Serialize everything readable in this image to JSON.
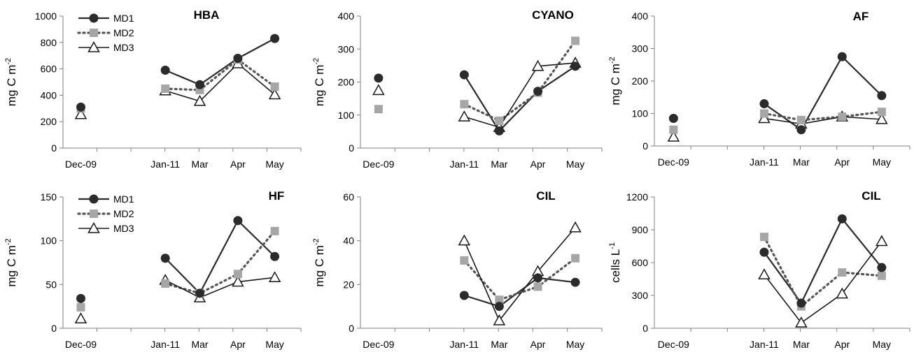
{
  "chart_data": [
    {
      "type": "line",
      "title": "HBA",
      "ylabel": "mg C m",
      "ylabel_sup": "-2",
      "ylim": [
        0,
        1000
      ],
      "yticks": [
        0,
        200,
        400,
        600,
        800,
        1000
      ],
      "categories": [
        "Dec-09",
        "Jan-11",
        "Mar",
        "Apr",
        "May"
      ],
      "legend": "top-left",
      "series": [
        {
          "name": "MD1",
          "values": [
            310,
            590,
            480,
            680,
            830
          ]
        },
        {
          "name": "MD2",
          "values": [
            300,
            450,
            440,
            670,
            465
          ]
        },
        {
          "name": "MD3",
          "values": [
            255,
            435,
            355,
            640,
            405
          ]
        }
      ]
    },
    {
      "type": "line",
      "title": "CYANO",
      "ylabel": "mg C m",
      "ylabel_sup": "-2",
      "ylim": [
        0,
        400
      ],
      "yticks": [
        0,
        100,
        200,
        300,
        400
      ],
      "categories": [
        "Dec-09",
        "Jan-11",
        "Mar",
        "Apr",
        "May"
      ],
      "series": [
        {
          "name": "MD1",
          "values": [
            212,
            222,
            52,
            172,
            248
          ]
        },
        {
          "name": "MD2",
          "values": [
            118,
            133,
            83,
            168,
            325
          ]
        },
        {
          "name": "MD3",
          "values": [
            175,
            95,
            63,
            248,
            258
          ]
        }
      ]
    },
    {
      "type": "line",
      "title": "AF",
      "ylabel": "mg C m",
      "ylabel_sup": "-2",
      "ylim": [
        0,
        400
      ],
      "yticks": [
        0,
        100,
        200,
        300,
        400
      ],
      "categories": [
        "Dec-09",
        "Jan-11",
        "Mar",
        "Apr",
        "May"
      ],
      "series": [
        {
          "name": "MD1",
          "values": [
            85,
            130,
            50,
            275,
            155
          ]
        },
        {
          "name": "MD2",
          "values": [
            50,
            100,
            80,
            90,
            105
          ]
        },
        {
          "name": "MD3",
          "values": [
            28,
            85,
            68,
            90,
            82
          ]
        }
      ]
    },
    {
      "type": "line",
      "title": "HF",
      "ylabel": "mg C m",
      "ylabel_sup": "-2",
      "ylim": [
        0,
        150
      ],
      "yticks": [
        0,
        50,
        100,
        150
      ],
      "categories": [
        "Dec-09",
        "Jan-11",
        "Mar",
        "Apr",
        "May"
      ],
      "legend": "top-left",
      "series": [
        {
          "name": "MD1",
          "values": [
            34,
            80,
            40,
            123,
            82
          ]
        },
        {
          "name": "MD2",
          "values": [
            24,
            51,
            40,
            62,
            111
          ]
        },
        {
          "name": "MD3",
          "values": [
            11,
            55,
            35,
            53,
            58
          ]
        }
      ]
    },
    {
      "type": "line",
      "title": "CIL",
      "ylabel": "mg C m",
      "ylabel_sup": "-2",
      "ylim": [
        0,
        60
      ],
      "yticks": [
        0,
        20,
        40,
        60
      ],
      "categories": [
        "Dec-09",
        "Jan-11",
        "Mar",
        "Apr",
        "May"
      ],
      "series": [
        {
          "name": "MD1",
          "values": [
            null,
            15,
            10,
            23,
            21
          ]
        },
        {
          "name": "MD2",
          "values": [
            null,
            31,
            13,
            19,
            32
          ]
        },
        {
          "name": "MD3",
          "values": [
            null,
            40,
            3.5,
            26,
            46
          ]
        }
      ]
    },
    {
      "type": "line",
      "title": "CIL",
      "ylabel": "cells L",
      "ylabel_sup": "-1",
      "ylim": [
        0,
        1200
      ],
      "yticks": [
        0,
        300,
        600,
        900,
        1200
      ],
      "categories": [
        "Dec-09",
        "Jan-11",
        "Mar",
        "Apr",
        "May"
      ],
      "series": [
        {
          "name": "MD1",
          "values": [
            null,
            695,
            230,
            1000,
            555
          ]
        },
        {
          "name": "MD2",
          "values": [
            null,
            835,
            200,
            510,
            480
          ]
        },
        {
          "name": "MD3",
          "values": [
            null,
            490,
            50,
            315,
            795
          ]
        }
      ]
    }
  ],
  "style": {
    "md1_color": "#2b2b2b",
    "md2_color": "#a6a6a6",
    "md2_line_color": "#555555",
    "md3_color": "#1a1a1a",
    "axis_color": "#7f7f7f"
  }
}
